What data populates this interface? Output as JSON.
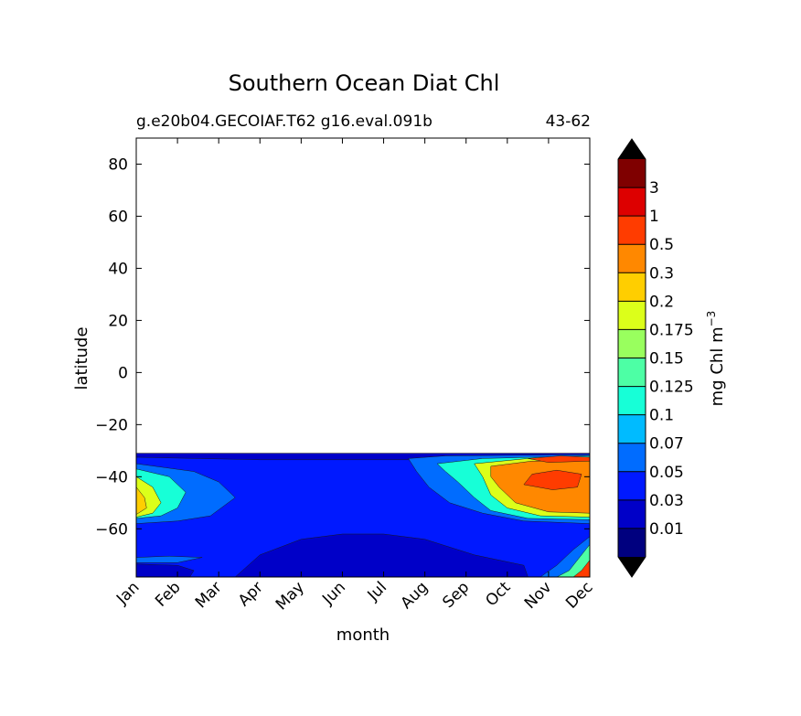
{
  "chart_data": {
    "type": "filled-contour",
    "title": "Southern Ocean Diat Chl",
    "subtitle_left": "g.e20b04.GECOIAF.T62 g16.eval.091b",
    "subtitle_right": "43-62",
    "xlabel": "month",
    "ylabel": "latitude",
    "x_ticks": [
      "Jan",
      "Feb",
      "Mar",
      "Apr",
      "May",
      "Jun",
      "Jul",
      "Aug",
      "Sep",
      "Oct",
      "Nov",
      "Dec"
    ],
    "xlim": [
      1,
      12
    ],
    "y_ticks": [
      80,
      60,
      40,
      20,
      0,
      -20,
      -40,
      -60
    ],
    "y_tick_labels": [
      "80",
      "60",
      "40",
      "20",
      "0",
      "−20",
      "−40",
      "−60"
    ],
    "ylim": [
      -78.5,
      90
    ],
    "data_lat_range": [
      -78.5,
      -31
    ],
    "colorbar": {
      "label": "mg Chl m",
      "label_exponent": "−3",
      "levels": [
        "0.01",
        "0.03",
        "0.05",
        "0.07",
        "0.1",
        "0.125",
        "0.15",
        "0.175",
        "0.2",
        "0.3",
        "0.5",
        "1",
        "3"
      ],
      "colors": [
        "#00007f",
        "#0000c8",
        "#0019ff",
        "#006cff",
        "#00bbff",
        "#17ffd7",
        "#4dffa5",
        "#99ff5e",
        "#dcff1a",
        "#ffce00",
        "#ff8800",
        "#ff3c00",
        "#dd0000",
        "#7f0000"
      ],
      "extend": "both"
    },
    "fields": [
      {
        "name": "background",
        "points": [
          [
            1,
            -78.5
          ],
          [
            12,
            -78.5
          ],
          [
            12,
            -31
          ],
          [
            1,
            -31
          ]
        ],
        "level": 2
      },
      {
        "name": "low-chl-basin",
        "points": [
          [
            3.4,
            -78.5
          ],
          [
            10.5,
            -78.5
          ],
          [
            10.4,
            -74
          ],
          [
            9.2,
            -70
          ],
          [
            8,
            -64
          ],
          [
            7,
            -62
          ],
          [
            6,
            -62
          ],
          [
            5,
            -64
          ],
          [
            4,
            -70
          ],
          [
            3.4,
            -78.5
          ]
        ],
        "level": 1
      },
      {
        "name": "ice-edge-low-west",
        "points": [
          [
            1,
            -78.5
          ],
          [
            2.3,
            -78.5
          ],
          [
            2.4,
            -76
          ],
          [
            2,
            -74
          ],
          [
            1,
            -73.5
          ]
        ],
        "level": 1
      },
      {
        "name": "north-edge-low",
        "points": [
          [
            1,
            -31
          ],
          [
            12,
            -31
          ],
          [
            12,
            -32.5
          ],
          [
            8,
            -33.5
          ],
          [
            4,
            -33.5
          ],
          [
            1,
            -32.5
          ]
        ],
        "level": 1
      },
      {
        "name": "spring-bloom-outer",
        "points": [
          [
            7.6,
            -33
          ],
          [
            8.5,
            -32
          ],
          [
            12,
            -31.5
          ],
          [
            12,
            -58
          ],
          [
            10.4,
            -57
          ],
          [
            9.4,
            -54
          ],
          [
            8.6,
            -50
          ],
          [
            8.1,
            -44
          ],
          [
            7.8,
            -38
          ]
        ],
        "level": 3
      },
      {
        "name": "spring-bloom-mid",
        "points": [
          [
            8.3,
            -35
          ],
          [
            9.4,
            -33
          ],
          [
            12,
            -32
          ],
          [
            12,
            -56.5
          ],
          [
            10.5,
            -56
          ],
          [
            9.6,
            -53
          ],
          [
            9.2,
            -48
          ],
          [
            8.8,
            -42
          ],
          [
            8.5,
            -38
          ]
        ],
        "level": 5
      },
      {
        "name": "spring-bloom-inner",
        "points": [
          [
            9.2,
            -35
          ],
          [
            10.5,
            -33
          ],
          [
            12,
            -32.5
          ],
          [
            12,
            -55.5
          ],
          [
            10.8,
            -55
          ],
          [
            10,
            -52
          ],
          [
            9.6,
            -47
          ],
          [
            9.4,
            -40
          ]
        ],
        "level": 8
      },
      {
        "name": "spring-bloom-core",
        "points": [
          [
            9.6,
            -36
          ],
          [
            10.6,
            -34
          ],
          [
            12,
            -34
          ],
          [
            12,
            -54
          ],
          [
            11,
            -53.5
          ],
          [
            10.2,
            -50
          ],
          [
            9.8,
            -44
          ],
          [
            9.6,
            -40
          ]
        ],
        "level": 10
      },
      {
        "name": "spring-bloom-peak",
        "points": [
          [
            10.6,
            -39
          ],
          [
            11.2,
            -37.5
          ],
          [
            11.8,
            -39
          ],
          [
            11.7,
            -44
          ],
          [
            11.1,
            -45
          ],
          [
            10.4,
            -43
          ]
        ],
        "level": 11
      },
      {
        "name": "spring-bloom-peak-north",
        "points": [
          [
            10.5,
            -33
          ],
          [
            11.3,
            -32
          ],
          [
            12,
            -32.5
          ],
          [
            12,
            -34
          ],
          [
            11,
            -34.5
          ]
        ],
        "level": 11
      },
      {
        "name": "summer-bloom-outer",
        "points": [
          [
            1,
            -35
          ],
          [
            2.4,
            -38
          ],
          [
            3,
            -42
          ],
          [
            3.4,
            -48
          ],
          [
            2.8,
            -55
          ],
          [
            2,
            -57
          ],
          [
            1,
            -58
          ]
        ],
        "level": 3
      },
      {
        "name": "summer-bloom-mid",
        "points": [
          [
            1,
            -37
          ],
          [
            1.8,
            -40
          ],
          [
            2.2,
            -46
          ],
          [
            2,
            -52
          ],
          [
            1.6,
            -55
          ],
          [
            1,
            -56
          ]
        ],
        "level": 5
      },
      {
        "name": "summer-bloom-inner",
        "points": [
          [
            1,
            -40
          ],
          [
            1.4,
            -44
          ],
          [
            1.6,
            -50
          ],
          [
            1.4,
            -54
          ],
          [
            1,
            -55.5
          ]
        ],
        "level": 8
      },
      {
        "name": "summer-bloom-core",
        "points": [
          [
            1,
            -44
          ],
          [
            1.2,
            -48
          ],
          [
            1.25,
            -52
          ],
          [
            1,
            -54.5
          ]
        ],
        "level": 9
      },
      {
        "name": "dec-ice-edge-bloom",
        "points": [
          [
            10.8,
            -78.5
          ],
          [
            12,
            -78.5
          ],
          [
            12,
            -63
          ],
          [
            11.6,
            -68
          ],
          [
            11.2,
            -74
          ]
        ],
        "level": 3
      },
      {
        "name": "dec-ice-edge-bloom-inner",
        "points": [
          [
            11.2,
            -78.5
          ],
          [
            12,
            -78.5
          ],
          [
            12,
            -66
          ],
          [
            11.7,
            -72
          ],
          [
            11.5,
            -76
          ]
        ],
        "level": 6
      },
      {
        "name": "dec-ice-edge-bloom-core",
        "points": [
          [
            11.6,
            -78.5
          ],
          [
            12,
            -78.5
          ],
          [
            12,
            -72
          ],
          [
            11.8,
            -76
          ]
        ],
        "level": 11
      },
      {
        "name": "jan-ice-edge-patch",
        "points": [
          [
            1,
            -71
          ],
          [
            1.8,
            -70.5
          ],
          [
            2.6,
            -71
          ],
          [
            2,
            -73
          ],
          [
            1,
            -73
          ]
        ],
        "level": 3
      }
    ]
  }
}
